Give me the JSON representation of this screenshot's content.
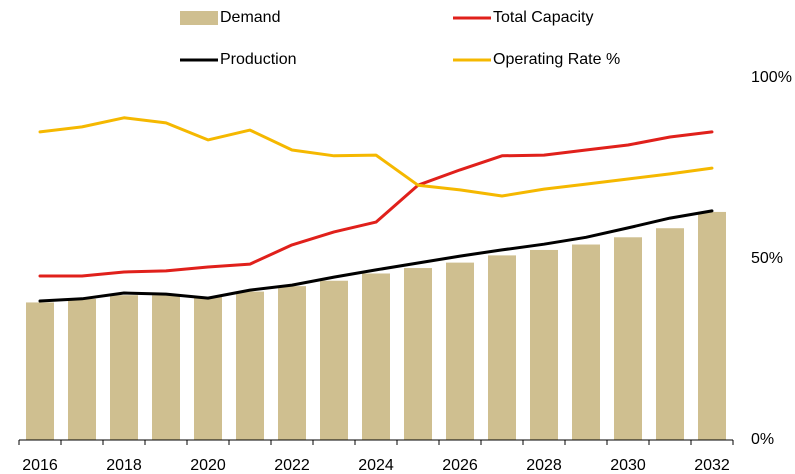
{
  "chart_data": {
    "type": "bar_line",
    "categories": [
      "2016",
      null,
      "2018",
      null,
      "2020",
      null,
      "2022",
      null,
      "2024",
      null,
      "2026",
      null,
      "2028",
      null,
      "2030",
      null,
      "2032"
    ],
    "series": [
      {
        "name": "Demand",
        "type": "bar",
        "color": "#cfbf90",
        "values": [
          38,
          39,
          40,
          40,
          39.5,
          41,
          42.5,
          44,
          46,
          47.5,
          49,
          51,
          52.5,
          54,
          56,
          58.5,
          63
        ]
      },
      {
        "name": "Total Capacity",
        "type": "line",
        "color": "#e0201b",
        "values": [
          45.3,
          45.3,
          46.4,
          46.7,
          47.8,
          48.6,
          53.9,
          57.5,
          60.2,
          70.4,
          74.6,
          78.5,
          78.7,
          80.1,
          81.5,
          83.7,
          85.1
        ]
      },
      {
        "name": "Production",
        "type": "line",
        "color": "#000000",
        "values": [
          38.4,
          39,
          40.6,
          40.3,
          39.2,
          41.4,
          42.8,
          45,
          47,
          48.9,
          50.8,
          52.5,
          54.1,
          56,
          58.6,
          61.3,
          63.3
        ]
      },
      {
        "name": "Operating Rate %",
        "type": "line",
        "color": "#f5b800",
        "values": [
          85.1,
          86.5,
          89,
          87.6,
          82.9,
          85.6,
          80.1,
          78.5,
          78.7,
          70.4,
          69.1,
          67.4,
          69.3,
          70.7,
          72.1,
          73.5,
          75.1
        ]
      }
    ],
    "ylim": [
      0,
      100
    ],
    "yticks": [
      {
        "value": 0,
        "label": "0%"
      },
      {
        "value": 50,
        "label": "50%"
      },
      {
        "value": 100,
        "label": "100%"
      }
    ]
  }
}
